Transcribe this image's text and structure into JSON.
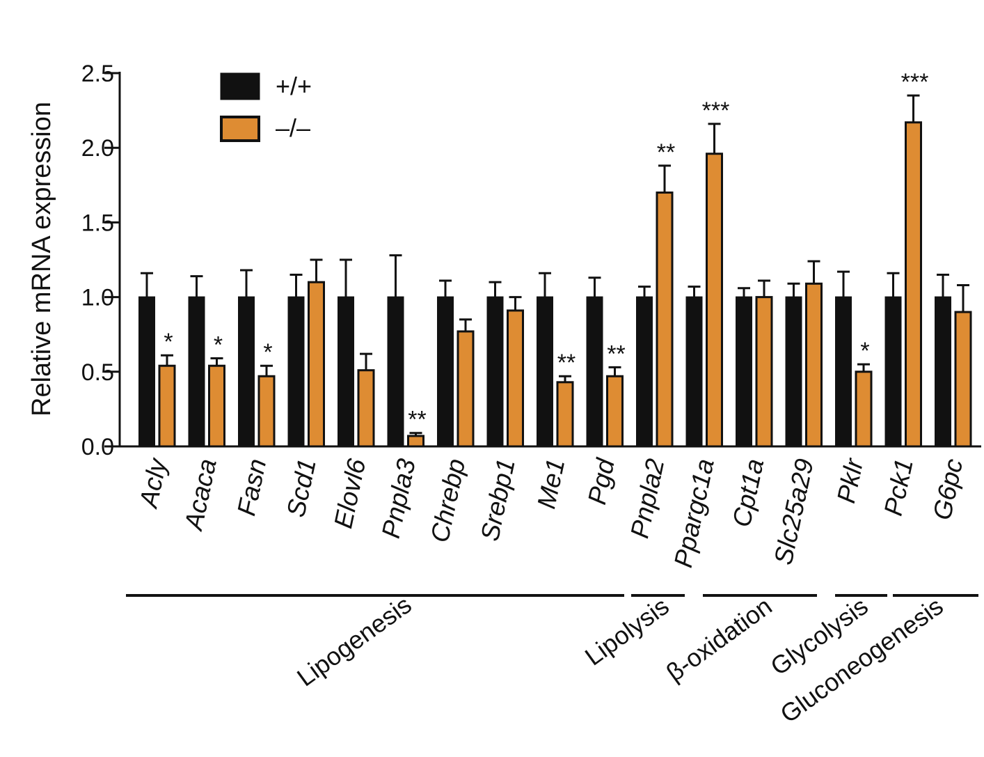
{
  "chart_data": {
    "type": "bar",
    "title": "",
    "xlabel": "",
    "ylabel": "Relative mRNA expression",
    "ylim": [
      0,
      2.5
    ],
    "yticks": [
      "0.0",
      "0.5",
      "1.0",
      "1.5",
      "2.0",
      "2.5"
    ],
    "ytick_values": [
      0,
      0.5,
      1.0,
      1.5,
      2.0,
      2.5
    ],
    "legend_position": "top-left",
    "categories": [
      "Acly",
      "Acaca",
      "Fasn",
      "Scd1",
      "Elovl6",
      "Pnpla3",
      "Chrebp",
      "Srebp1",
      "Me1",
      "Pgd",
      "Pnpla2",
      "Ppargc1a",
      "Cpt1a",
      "Slc25a29",
      "Pklr",
      "Pck1",
      "G6pc"
    ],
    "series": [
      {
        "name": "+/+",
        "color": "#111111",
        "values": [
          1.0,
          1.0,
          1.0,
          1.0,
          1.0,
          1.0,
          1.0,
          1.0,
          1.0,
          1.0,
          1.0,
          1.0,
          1.0,
          1.0,
          1.0,
          1.0,
          1.0
        ],
        "errors": [
          0.16,
          0.14,
          0.18,
          0.15,
          0.25,
          0.28,
          0.11,
          0.1,
          0.16,
          0.13,
          0.07,
          0.07,
          0.06,
          0.09,
          0.17,
          0.16,
          0.15
        ]
      },
      {
        "name": "–/–",
        "color": "#DE8C33",
        "values": [
          0.54,
          0.54,
          0.47,
          1.1,
          0.51,
          0.07,
          0.77,
          0.91,
          0.43,
          0.47,
          1.7,
          1.96,
          1.0,
          1.09,
          0.5,
          2.17,
          0.9
        ],
        "errors": [
          0.07,
          0.05,
          0.07,
          0.15,
          0.11,
          0.02,
          0.08,
          0.09,
          0.04,
          0.06,
          0.18,
          0.2,
          0.11,
          0.15,
          0.05,
          0.18,
          0.18
        ]
      }
    ],
    "significance": [
      "*",
      "*",
      "*",
      "",
      "",
      "**",
      "",
      "",
      "**",
      "**",
      "**",
      "***",
      "",
      "",
      "*",
      "***",
      ""
    ],
    "groups": [
      {
        "label": "Lipogenesis",
        "start": 0,
        "end": 9
      },
      {
        "label": "Lipolysis",
        "start": 10,
        "end": 10
      },
      {
        "label": "β-oxidation",
        "start": 11,
        "end": 13
      },
      {
        "label": "Glycolysis",
        "start": 14,
        "end": 14
      },
      {
        "label": "Gluconeogenesis",
        "start": 15,
        "end": 16
      }
    ]
  }
}
